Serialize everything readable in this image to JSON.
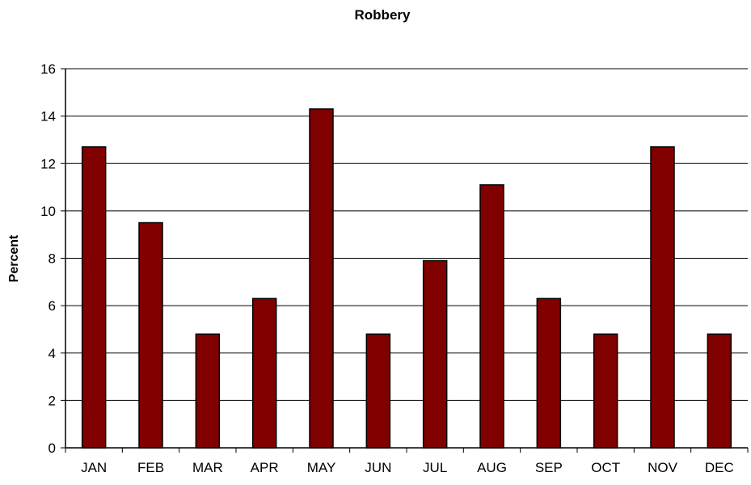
{
  "chart_data": {
    "type": "bar",
    "title": "Robbery",
    "xlabel": "",
    "ylabel": "Percent",
    "categories": [
      "JAN",
      "FEB",
      "MAR",
      "APR",
      "MAY",
      "JUN",
      "JUL",
      "AUG",
      "SEP",
      "OCT",
      "NOV",
      "DEC"
    ],
    "values": [
      12.7,
      9.5,
      4.8,
      6.3,
      14.3,
      4.8,
      7.9,
      11.1,
      6.3,
      4.8,
      12.7,
      4.8
    ],
    "ylim": [
      0,
      16
    ],
    "yticks": [
      "0",
      "2",
      "4",
      "6",
      "8",
      "10",
      "12",
      "14",
      "16"
    ],
    "grid": true,
    "legend": "none",
    "bar_color": "#800000"
  }
}
